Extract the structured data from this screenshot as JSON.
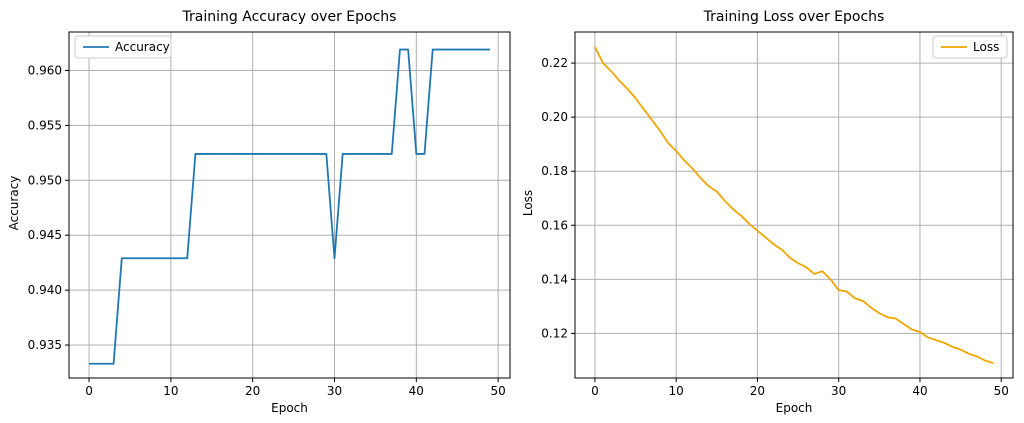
{
  "chart_data": [
    {
      "type": "line",
      "title": "Training Accuracy over Epochs",
      "xlabel": "Epoch",
      "ylabel": "Accuracy",
      "xlim": [
        -2.45,
        51.45
      ],
      "ylim": [
        0.932,
        0.9635
      ],
      "xticks": [
        0,
        10,
        20,
        30,
        40,
        50
      ],
      "yticks": [
        0.935,
        0.94,
        0.945,
        0.95,
        0.955,
        0.96
      ],
      "ytick_labels": [
        "0.935",
        "0.940",
        "0.945",
        "0.950",
        "0.955",
        "0.960"
      ],
      "grid": true,
      "legend_position": "top-left",
      "series": [
        {
          "name": "Accuracy",
          "color": "#1f77b4",
          "x": [
            0,
            1,
            2,
            3,
            4,
            5,
            6,
            7,
            8,
            9,
            10,
            11,
            12,
            13,
            14,
            15,
            16,
            17,
            18,
            19,
            20,
            21,
            22,
            23,
            24,
            25,
            26,
            27,
            28,
            29,
            30,
            31,
            32,
            33,
            34,
            35,
            36,
            37,
            38,
            39,
            40,
            41,
            42,
            43,
            44,
            45,
            46,
            47,
            48,
            49
          ],
          "values": [
            0.9333,
            0.9333,
            0.9333,
            0.9333,
            0.9429,
            0.9429,
            0.9429,
            0.9429,
            0.9429,
            0.9429,
            0.9429,
            0.9429,
            0.9429,
            0.9524,
            0.9524,
            0.9524,
            0.9524,
            0.9524,
            0.9524,
            0.9524,
            0.9524,
            0.9524,
            0.9524,
            0.9524,
            0.9524,
            0.9524,
            0.9524,
            0.9524,
            0.9524,
            0.9524,
            0.9429,
            0.9524,
            0.9524,
            0.9524,
            0.9524,
            0.9524,
            0.9524,
            0.9524,
            0.9619,
            0.9619,
            0.9524,
            0.9524,
            0.9619,
            0.9619,
            0.9619,
            0.9619,
            0.9619,
            0.9619,
            0.9619,
            0.9619
          ]
        }
      ]
    },
    {
      "type": "line",
      "title": "Training Loss over Epochs",
      "xlabel": "Epoch",
      "ylabel": "Loss",
      "xlim": [
        -2.45,
        51.45
      ],
      "ylim": [
        0.1035,
        0.2315
      ],
      "xticks": [
        0,
        10,
        20,
        30,
        40,
        50
      ],
      "yticks": [
        0.12,
        0.14,
        0.16,
        0.18,
        0.2,
        0.22
      ],
      "ytick_labels": [
        "0.12",
        "0.14",
        "0.16",
        "0.18",
        "0.20",
        "0.22"
      ],
      "grid": true,
      "legend_position": "top-right",
      "series": [
        {
          "name": "Loss",
          "color": "#f0a500",
          "x": [
            0,
            1,
            2,
            3,
            4,
            5,
            6,
            7,
            8,
            9,
            10,
            11,
            12,
            13,
            14,
            15,
            16,
            17,
            18,
            19,
            20,
            21,
            22,
            23,
            24,
            25,
            26,
            27,
            28,
            29,
            30,
            31,
            32,
            33,
            34,
            35,
            36,
            37,
            38,
            39,
            40,
            41,
            42,
            43,
            44,
            45,
            46,
            47,
            48,
            49
          ],
          "values": [
            0.226,
            0.22,
            0.217,
            0.2135,
            0.2105,
            0.207,
            0.203,
            0.199,
            0.195,
            0.1905,
            0.1875,
            0.184,
            0.181,
            0.1775,
            0.1745,
            0.1725,
            0.169,
            0.166,
            0.1635,
            0.1605,
            0.158,
            0.1555,
            0.153,
            0.151,
            0.148,
            0.146,
            0.1445,
            0.142,
            0.143,
            0.14,
            0.136,
            0.1355,
            0.133,
            0.132,
            0.1295,
            0.1275,
            0.126,
            0.1255,
            0.1235,
            0.1215,
            0.1205,
            0.1185,
            0.1175,
            0.1165,
            0.115,
            0.114,
            0.1125,
            0.1115,
            0.11,
            0.109
          ]
        }
      ]
    }
  ]
}
